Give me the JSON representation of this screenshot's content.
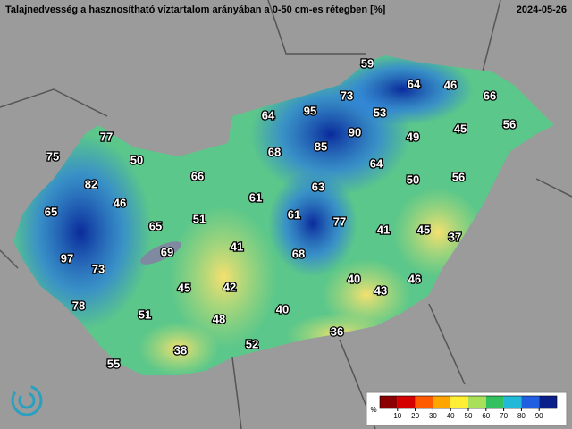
{
  "header": {
    "title": "Talajnedvesség a hasznosítható víztartalom arányában a 0-50 cm-es rétegben [%]",
    "date": "2024-05-26"
  },
  "stations": {
    "values": [
      59,
      64,
      46,
      66,
      73,
      95,
      53,
      64,
      56,
      45,
      77,
      85,
      90,
      49,
      75,
      50,
      68,
      64,
      66,
      50,
      56,
      82,
      63,
      61,
      46,
      65,
      65,
      51,
      61,
      77,
      41,
      45,
      37,
      69,
      41,
      68,
      97,
      73,
      40,
      46,
      43,
      45,
      42,
      78,
      40,
      51,
      48,
      36,
      52,
      38,
      55
    ]
  },
  "legend": {
    "unit": "%",
    "ticks": [
      10,
      20,
      30,
      40,
      50,
      60,
      70,
      80,
      90
    ],
    "colors": [
      "#8b0000",
      "#d40000",
      "#ff5a00",
      "#ffa500",
      "#ffee33",
      "#a8e05a",
      "#33c060",
      "#22b8d8",
      "#1f5fe0",
      "#0a1f8a"
    ]
  }
}
